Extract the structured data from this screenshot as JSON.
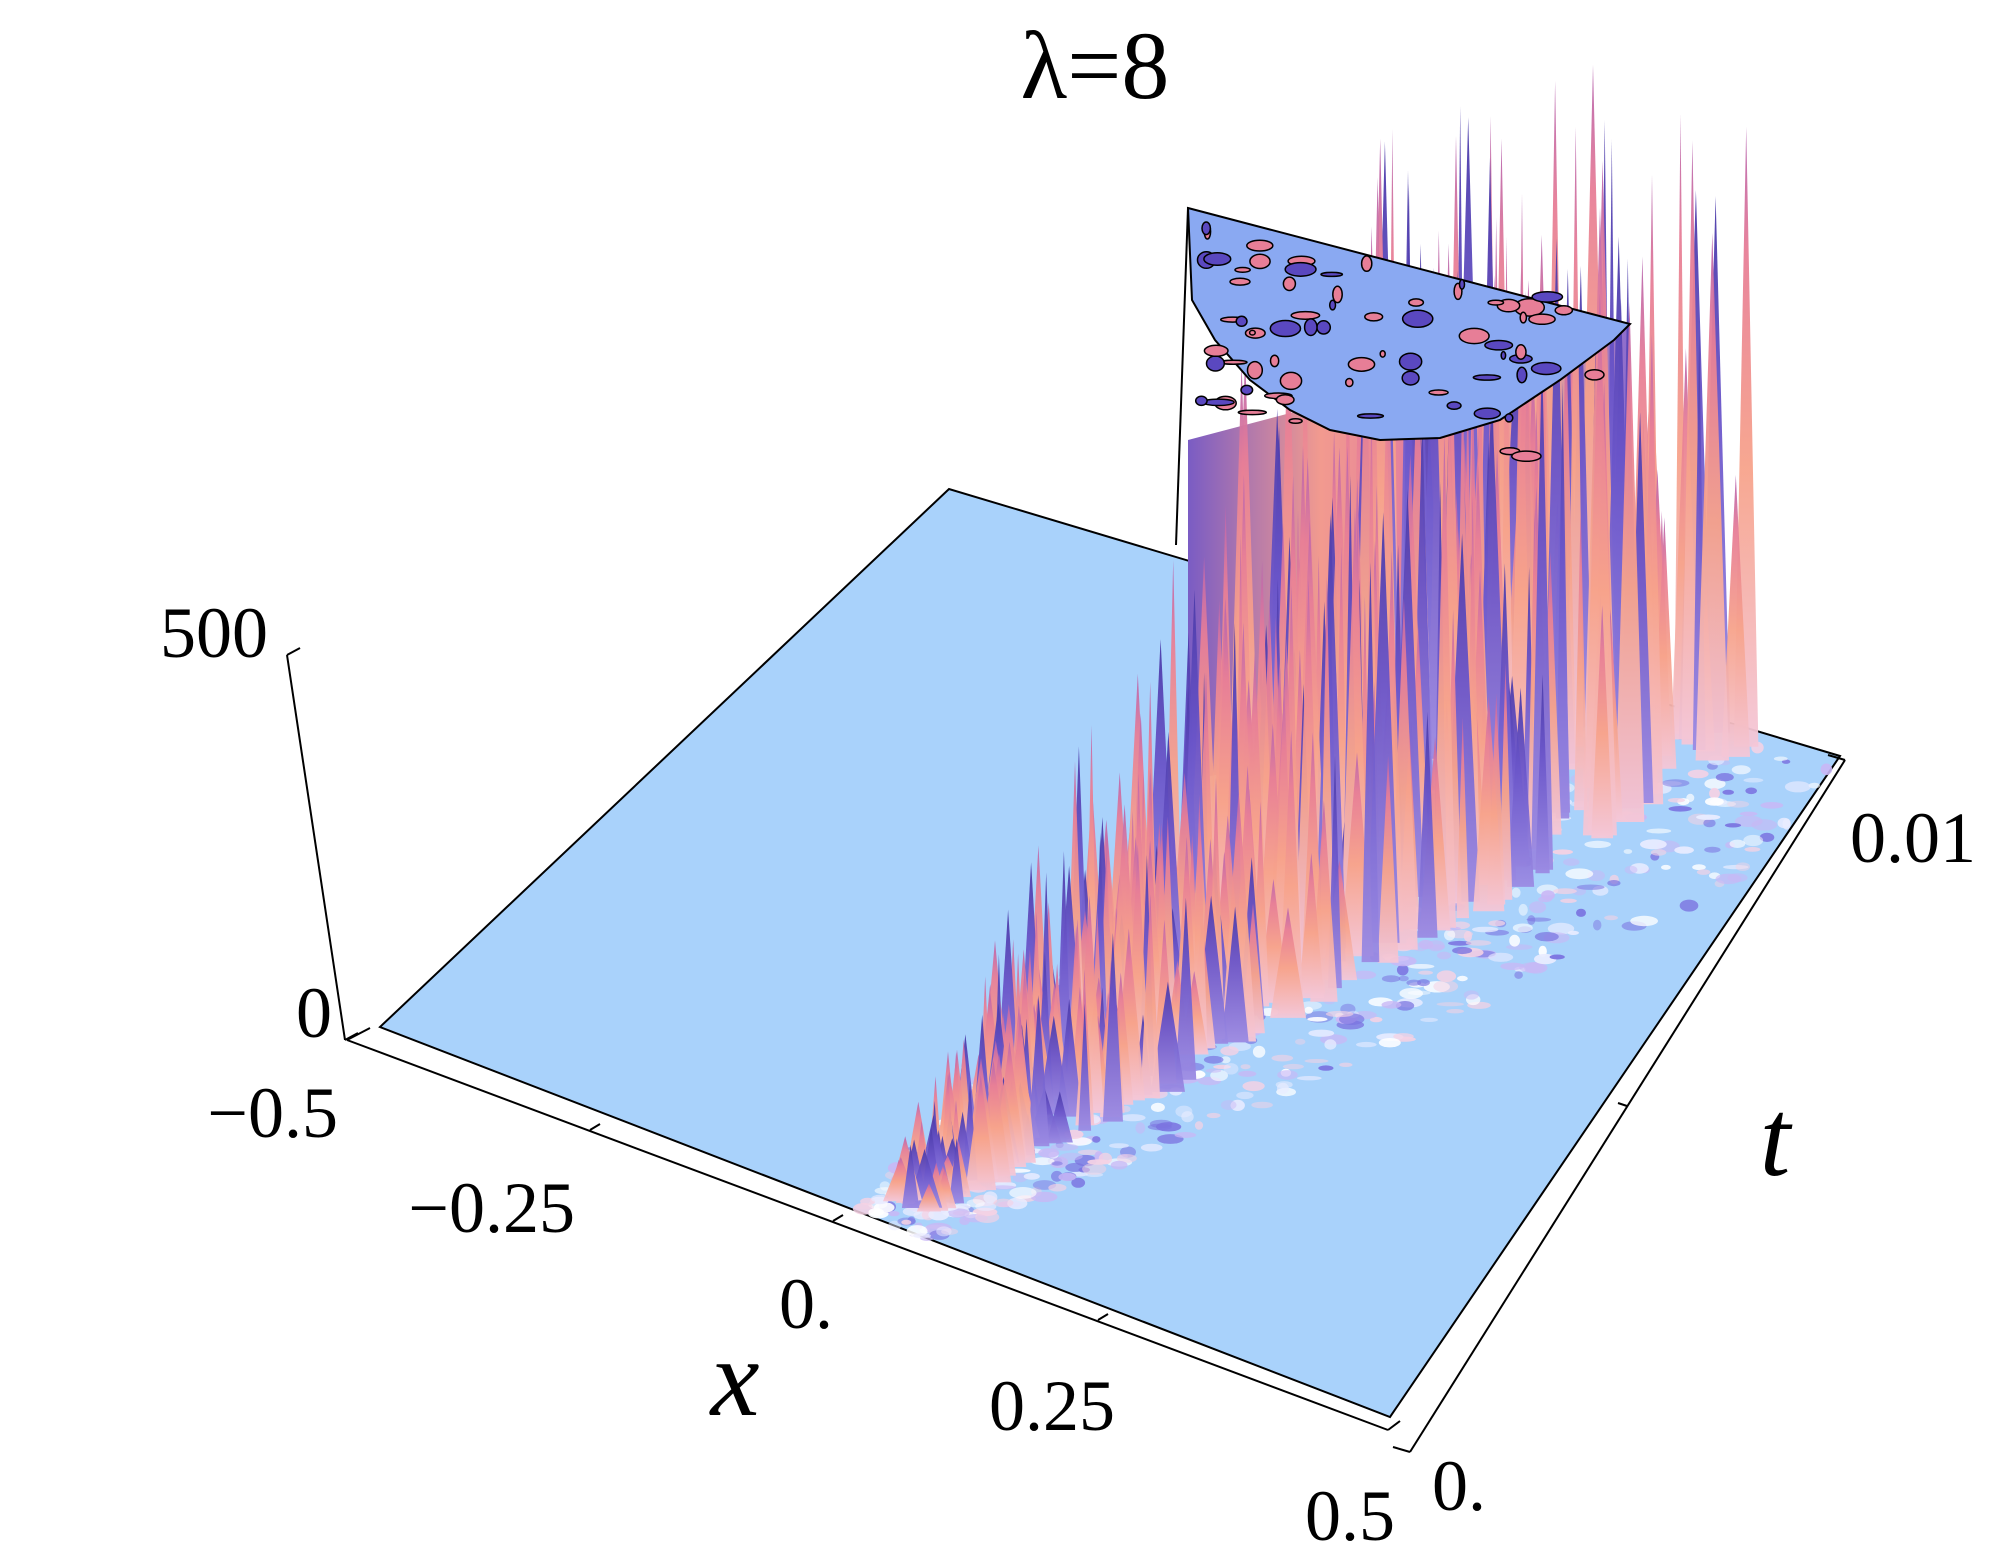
{
  "chart_data": {
    "type": "surface3d",
    "title": "λ=8",
    "xlabel": "x",
    "ylabel": "t",
    "zlabel": "",
    "x_range": [
      -0.5,
      0.5
    ],
    "t_range": [
      0,
      0.01
    ],
    "z_range": [
      0,
      500
    ],
    "x_ticks": [
      "−0.5",
      "−0.25",
      "0.",
      "0.25",
      "0.5"
    ],
    "t_ticks": [
      "0.",
      "0.01"
    ],
    "z_ticks": [
      "0",
      "500"
    ],
    "clipped_top": true,
    "colors": {
      "base": "#a9d2fb",
      "cap": "#8aa9f2",
      "peak_light": "#f7a38b",
      "peak_mid": "#e77e97",
      "peak_dark": "#5a48c0"
    },
    "front_profile": [
      {
        "t": 0.0,
        "x": 0.0,
        "amp": 40
      },
      {
        "t": 0.002,
        "x": 0.04,
        "amp": 150
      },
      {
        "t": 0.004,
        "x": 0.08,
        "amp": 250
      },
      {
        "t": 0.006,
        "x": 0.12,
        "amp": 380
      },
      {
        "t": 0.008,
        "x": 0.17,
        "amp": 500
      },
      {
        "t": 0.01,
        "x": 0.22,
        "amp": 500
      }
    ]
  }
}
